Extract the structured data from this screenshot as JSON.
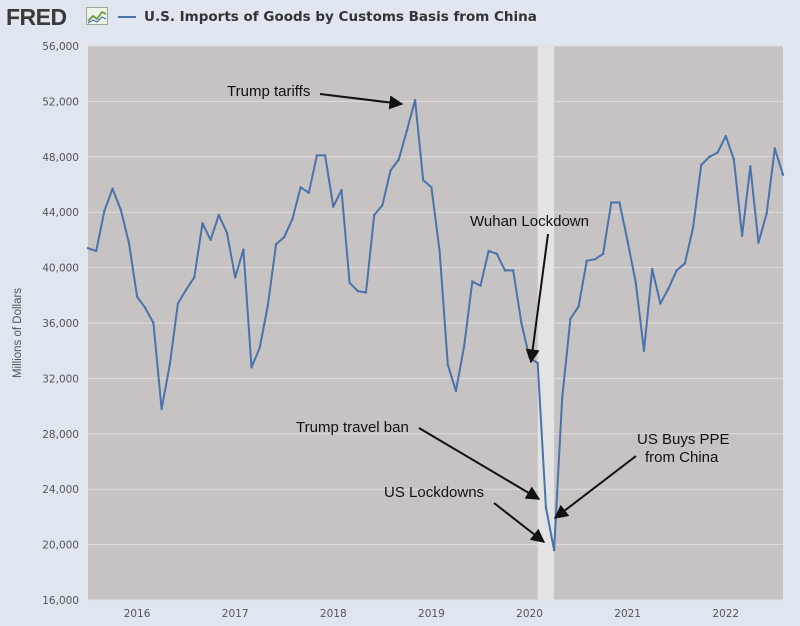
{
  "header": {
    "logo": "FRED",
    "logo_icon": "fred-chart-icon",
    "series_title": "U.S. Imports of Goods by Customs Basis from China"
  },
  "colors": {
    "series": "#4a72ad",
    "plot_bg": "#c8c3c3",
    "recession": "#e3e3e3",
    "page_bg": "#dfe6ef",
    "grid": "#e0dddd"
  },
  "chart_data": {
    "type": "line",
    "title": "U.S. Imports of Goods by Customs Basis from China",
    "xlabel": "",
    "ylabel": "Millions of Dollars",
    "xlim": [
      "2015-07",
      "2022-08"
    ],
    "ylim": [
      16000,
      56000
    ],
    "y_ticks": [
      16000,
      20000,
      24000,
      28000,
      32000,
      36000,
      40000,
      44000,
      48000,
      52000,
      56000
    ],
    "y_tick_labels": [
      "16,000",
      "20,000",
      "24,000",
      "28,000",
      "32,000",
      "36,000",
      "40,000",
      "44,000",
      "48,000",
      "52,000",
      "56,000"
    ],
    "x_tick_labels": [
      "2016",
      "2017",
      "2018",
      "2019",
      "2020",
      "2021",
      "2022"
    ],
    "x_tick_dates": [
      "2016-01",
      "2017-01",
      "2018-01",
      "2019-01",
      "2020-01",
      "2021-01",
      "2022-01"
    ],
    "grid": true,
    "recession_band": [
      "2020-02",
      "2020-04"
    ],
    "series": [
      {
        "name": "U.S. Imports of Goods by Customs Basis from China",
        "x": [
          "2015-07",
          "2015-08",
          "2015-09",
          "2015-10",
          "2015-11",
          "2015-12",
          "2016-01",
          "2016-02",
          "2016-03",
          "2016-04",
          "2016-05",
          "2016-06",
          "2016-07",
          "2016-08",
          "2016-09",
          "2016-10",
          "2016-11",
          "2016-12",
          "2017-01",
          "2017-02",
          "2017-03",
          "2017-04",
          "2017-05",
          "2017-06",
          "2017-07",
          "2017-08",
          "2017-09",
          "2017-10",
          "2017-11",
          "2017-12",
          "2018-01",
          "2018-02",
          "2018-03",
          "2018-04",
          "2018-05",
          "2018-06",
          "2018-07",
          "2018-08",
          "2018-09",
          "2018-10",
          "2018-11",
          "2018-12",
          "2019-01",
          "2019-02",
          "2019-03",
          "2019-04",
          "2019-05",
          "2019-06",
          "2019-07",
          "2019-08",
          "2019-09",
          "2019-10",
          "2019-11",
          "2019-12",
          "2020-01",
          "2020-02",
          "2020-03",
          "2020-04",
          "2020-05",
          "2020-06",
          "2020-07",
          "2020-08",
          "2020-09",
          "2020-10",
          "2020-11",
          "2020-12",
          "2021-01",
          "2021-02",
          "2021-03",
          "2021-04",
          "2021-05",
          "2021-06",
          "2021-07",
          "2021-08",
          "2021-09",
          "2021-10",
          "2021-11",
          "2021-12",
          "2022-01",
          "2022-02",
          "2022-03",
          "2022-04",
          "2022-05",
          "2022-06",
          "2022-07",
          "2022-08"
        ],
        "values": [
          41400,
          41200,
          44100,
          45700,
          44200,
          41800,
          37900,
          37100,
          36000,
          29800,
          33000,
          37400,
          38400,
          39300,
          43200,
          42000,
          43800,
          42500,
          39300,
          41300,
          32800,
          34200,
          37300,
          41700,
          42200,
          43500,
          45800,
          45400,
          48100,
          48100,
          44400,
          45600,
          38900,
          38300,
          38200,
          43800,
          44500,
          47000,
          47800,
          49900,
          52100,
          46300,
          45800,
          41200,
          33000,
          31100,
          34300,
          39000,
          38700,
          41200,
          41000,
          39800,
          39800,
          36000,
          33500,
          33100,
          22700,
          19600,
          30600,
          36300,
          37200,
          40500,
          40600,
          41000,
          44700,
          44700,
          41900,
          38900,
          34000,
          39900,
          37400,
          38500,
          39800,
          40300,
          42900,
          47400,
          48000,
          48300,
          49500,
          47800,
          42300,
          47300,
          41800,
          43900,
          48600,
          46700
        ]
      }
    ],
    "annotations": [
      {
        "text": "Trump tariffs",
        "target": "2018-11"
      },
      {
        "text": "Wuhan Lockdown",
        "target": "2020-02"
      },
      {
        "text": "Trump travel ban",
        "target": "2020-03"
      },
      {
        "text": "US Buys PPE",
        "text2": "from China",
        "target": "2020-04"
      },
      {
        "text": "US Lockdowns",
        "target": "2020-04"
      }
    ]
  }
}
